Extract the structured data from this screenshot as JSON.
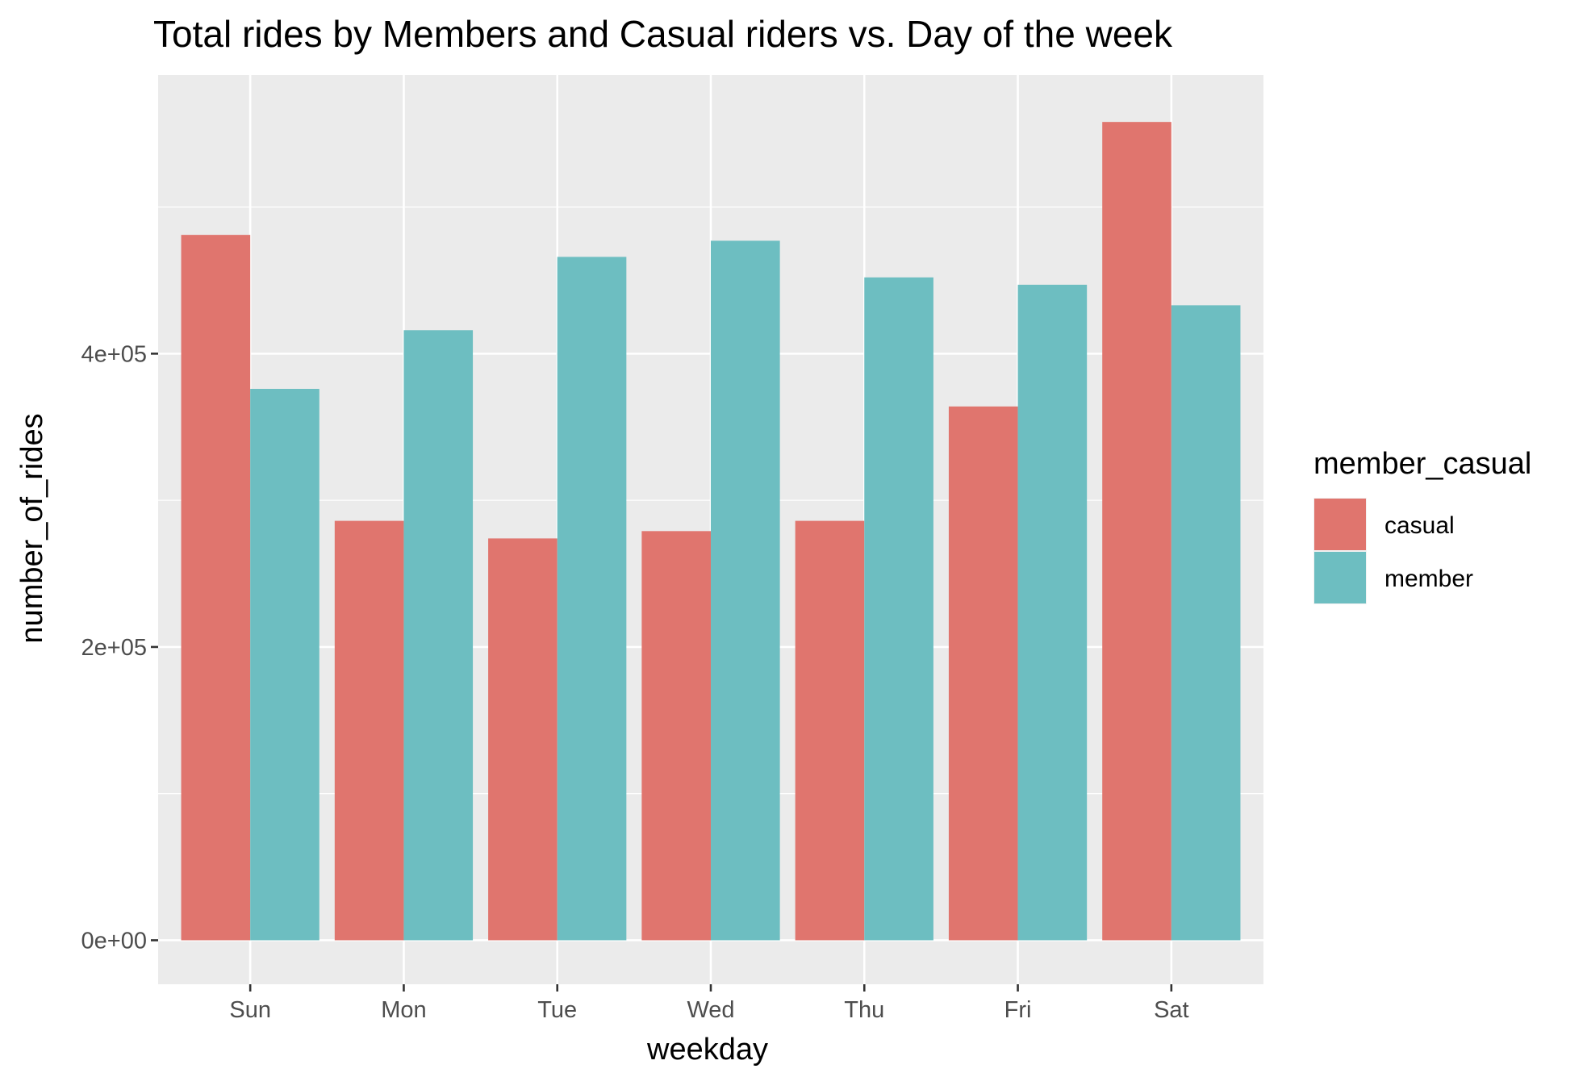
{
  "chart_data": {
    "type": "bar",
    "title": "Total rides by Members and Casual riders vs. Day of the week",
    "xlabel": "weekday",
    "ylabel": "number_of_rides",
    "categories": [
      "Sun",
      "Mon",
      "Tue",
      "Wed",
      "Thu",
      "Fri",
      "Sat"
    ],
    "series": [
      {
        "name": "casual",
        "color": "#E0756E",
        "values": [
          481000,
          286000,
          274000,
          279000,
          286000,
          364000,
          558000
        ]
      },
      {
        "name": "member",
        "color": "#6DBEC1",
        "values": [
          376000,
          416000,
          466000,
          477000,
          452000,
          447000,
          433000
        ]
      }
    ],
    "ylim": [
      -30000,
      590000
    ],
    "yticks": [
      0,
      200000,
      400000
    ],
    "ytick_labels": [
      "0e+00",
      "2e+05",
      "4e+05"
    ],
    "y_minor_ticks": [
      100000,
      300000,
      500000
    ],
    "legend": {
      "title": "member_casual",
      "position": "right"
    },
    "grid": true,
    "panel_background": "#EBEBEB"
  }
}
